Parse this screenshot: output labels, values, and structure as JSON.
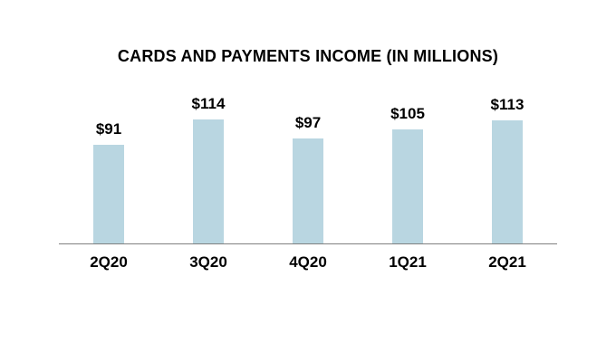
{
  "chart_data": {
    "type": "bar",
    "title": "CARDS AND PAYMENTS INCOME (IN MILLIONS)",
    "categories": [
      "2Q20",
      "3Q20",
      "4Q20",
      "1Q21",
      "2Q21"
    ],
    "values": [
      91,
      114,
      97,
      105,
      113
    ],
    "value_labels": [
      "$91",
      "$114",
      "$97",
      "$105",
      "$113"
    ],
    "xlabel": "",
    "ylabel": "",
    "ylim": [
      0,
      120
    ],
    "grid": false,
    "legend": false,
    "bar_color": "#b9d6e1",
    "axis_color": "#808080",
    "text_color": "#000000",
    "background_color": "#ffffff"
  }
}
